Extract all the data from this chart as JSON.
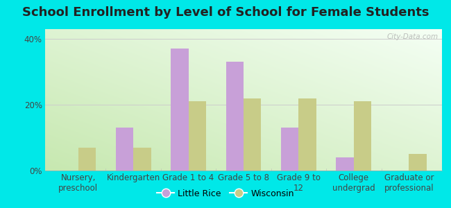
{
  "title": "School Enrollment by Level of School for Female Students",
  "categories": [
    "Nursery,\npreschool",
    "Kindergarten",
    "Grade 1 to 4",
    "Grade 5 to 8",
    "Grade 9 to\n12",
    "College\nundergrad",
    "Graduate or\nprofessional"
  ],
  "little_rice": [
    0.0,
    13.0,
    37.0,
    33.0,
    13.0,
    4.0,
    0.0
  ],
  "wisconsin": [
    7.0,
    7.0,
    21.0,
    22.0,
    22.0,
    21.0,
    5.0
  ],
  "little_rice_color": "#c8a0d8",
  "wisconsin_color": "#c8cc88",
  "background_color": "#00e8e8",
  "yticks": [
    0,
    20,
    40
  ],
  "ylim": [
    0,
    43
  ],
  "legend_labels": [
    "Little Rice",
    "Wisconsin"
  ],
  "watermark": "City-Data.com",
  "title_fontsize": 13,
  "tick_fontsize": 8.5,
  "bar_width": 0.32
}
